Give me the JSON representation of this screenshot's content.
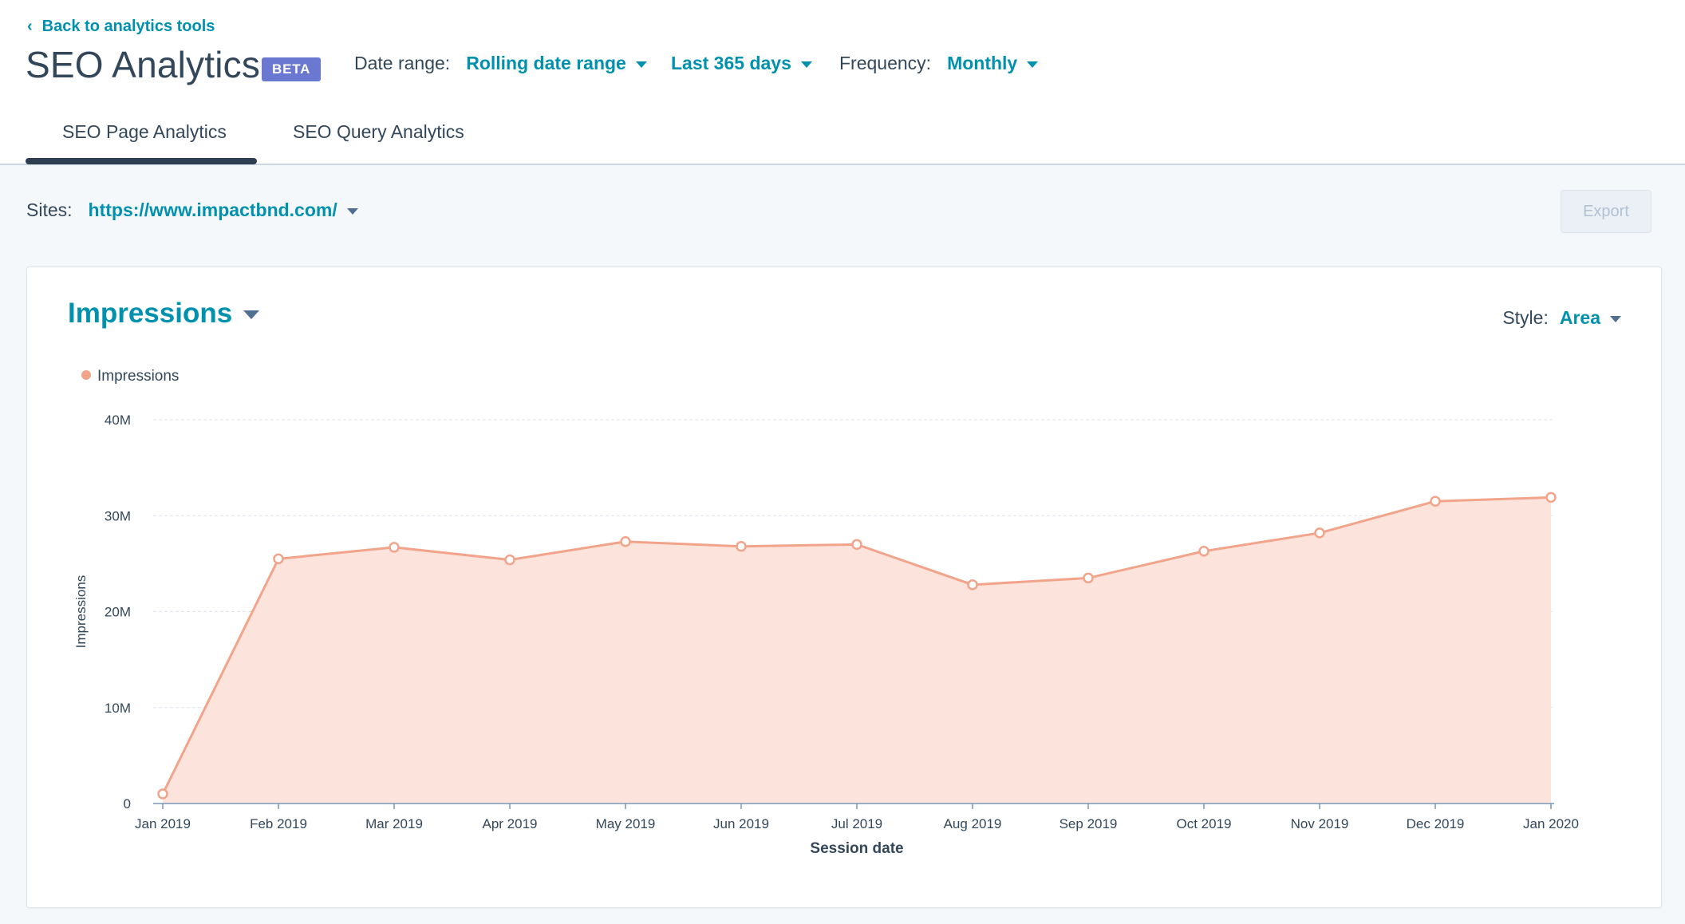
{
  "header": {
    "back_link": "Back to analytics tools",
    "title": "SEO Analytics",
    "badge": "BETA",
    "date_range_label": "Date range:",
    "date_range_value": "Rolling date range",
    "period_value": "Last 365 days",
    "frequency_label": "Frequency:",
    "frequency_value": "Monthly"
  },
  "tabs": [
    {
      "label": "SEO Page Analytics",
      "active": true
    },
    {
      "label": "SEO Query Analytics",
      "active": false
    }
  ],
  "toolbar": {
    "sites_label": "Sites:",
    "sites_value": "https://www.impactbnd.com/",
    "export_label": "Export"
  },
  "card": {
    "metric_value": "Impressions",
    "style_label": "Style:",
    "style_value": "Area"
  },
  "colors": {
    "accent": "#0091ae",
    "series_line": "#f2a48b",
    "series_fill": "#fce3dc"
  },
  "chart_data": {
    "type": "area",
    "categories": [
      "Jan 2019",
      "Feb 2019",
      "Mar 2019",
      "Apr 2019",
      "May 2019",
      "Jun 2019",
      "Jul 2019",
      "Aug 2019",
      "Sep 2019",
      "Oct 2019",
      "Nov 2019",
      "Dec 2019",
      "Jan 2020"
    ],
    "series": [
      {
        "name": "Impressions",
        "values": [
          1000000,
          25500000,
          26700000,
          25400000,
          27300000,
          26800000,
          27000000,
          22800000,
          23500000,
          26300000,
          28200000,
          31500000,
          31900000
        ]
      }
    ],
    "xlabel": "Session date",
    "ylabel": "Impressions",
    "yticks": [
      {
        "value": 0,
        "label": "0"
      },
      {
        "value": 10000000,
        "label": "10M"
      },
      {
        "value": 20000000,
        "label": "20M"
      },
      {
        "value": 30000000,
        "label": "30M"
      },
      {
        "value": 40000000,
        "label": "40M"
      }
    ],
    "ylim": [
      0,
      40000000
    ],
    "grid": true,
    "legend": "top-left"
  }
}
